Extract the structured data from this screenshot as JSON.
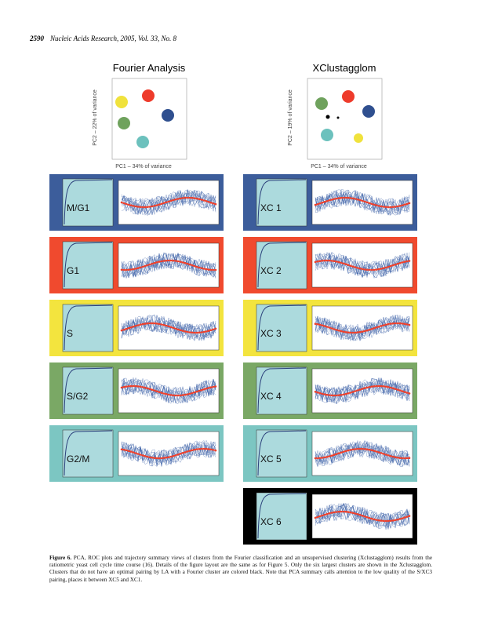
{
  "header": {
    "page": "2590",
    "journal": "Nucleic Acids Research, 2005, Vol. 33, No. 8"
  },
  "figure": {
    "pca": [
      {
        "title": "Fourier Analysis",
        "y_label": "PC2 – 22% of variance",
        "x_label": "PC1 – 34% of variance"
      },
      {
        "title": "XClustagglom",
        "y_label": "PC2 – 19% of variance",
        "x_label": "PC1 – 34% of variance"
      }
    ],
    "left_panels": [
      {
        "label": "M/G1"
      },
      {
        "label": "G1"
      },
      {
        "label": "S"
      },
      {
        "label": "S/G2"
      },
      {
        "label": "G2/M"
      }
    ],
    "right_panels": [
      {
        "label": "XC 1"
      },
      {
        "label": "XC 2"
      },
      {
        "label": "XC 3"
      },
      {
        "label": "XC 4"
      },
      {
        "label": "XC 5"
      },
      {
        "label": "XC 6"
      }
    ]
  },
  "caption": {
    "label": "Figure 6.",
    "text": "PCA, ROC plots and trajectory summary views of clusters from the Fourier classification and an unsupervised clustering (Xclustagglom) results from the ratiometric yeast cell cycle time course (16). Details of the figure layout are the same as for Figure 5. Only the six largest clusters are shown in the Xclustagglom. Clusters that do not have an optimal pairing by LA with a Fourier cluster are colored black. Note that PCA summary calls attention to the low quality of the S/XC3 pairing, places it between XC5 and XC1."
  }
}
